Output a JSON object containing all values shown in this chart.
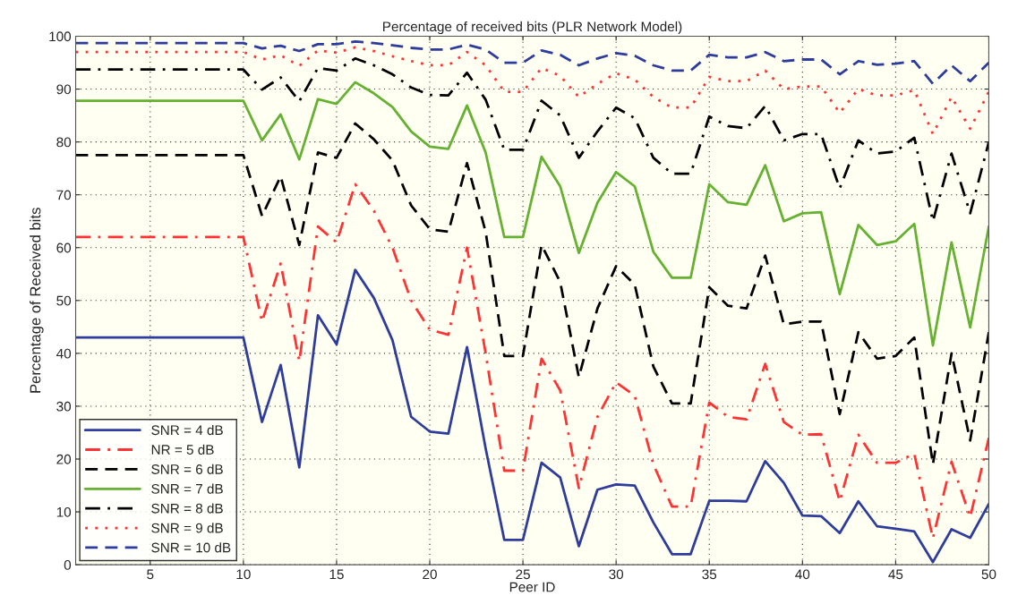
{
  "chart_data": {
    "type": "line",
    "title": "Percentage of received bits (PLR Network Model)",
    "xlabel": "Peer ID",
    "ylabel": "Percentage of Received bits",
    "x": [
      1,
      10,
      11,
      12,
      13,
      14,
      15,
      16,
      17,
      18,
      19,
      20,
      21,
      22,
      23,
      24,
      25,
      26,
      27,
      28,
      29,
      30,
      31,
      32,
      33,
      34,
      35,
      36,
      37,
      38,
      39,
      40,
      41,
      42,
      43,
      44,
      45,
      46,
      47,
      48,
      49,
      50
    ],
    "series": [
      {
        "name": "SNR = 4 dB",
        "color": "#2e3c9c",
        "line_style": "solid",
        "values": [
          43,
          43,
          27,
          37.8,
          18.4,
          47.2,
          41.7,
          55.8,
          50.5,
          42.5,
          28,
          25.2,
          24.8,
          41.2,
          22,
          4.7,
          4.7,
          19.3,
          16.5,
          3.5,
          14.2,
          15.2,
          15,
          8,
          2,
          2,
          12.1,
          12.1,
          12,
          19.6,
          15.5,
          9.3,
          9.2,
          6,
          12,
          7.3,
          6.8,
          6.3,
          0.5,
          6.7,
          5.1,
          11.5
        ]
      },
      {
        "name": "NR = 5 dB",
        "color": "#ff3333",
        "line_style": "dashdot",
        "values": [
          62,
          62,
          46,
          57,
          38.5,
          64,
          61,
          72,
          67,
          60,
          50,
          44.5,
          43.5,
          60,
          40,
          17.8,
          17.8,
          39,
          33,
          14.5,
          28,
          34.5,
          32,
          19,
          11,
          11,
          30.7,
          28,
          27.5,
          38,
          27,
          24.6,
          24.7,
          12,
          24.6,
          19.3,
          19.3,
          21,
          5,
          19.5,
          9,
          24
        ]
      },
      {
        "name": "SNR = 6 dB",
        "color": "#000000",
        "line_style": "dashed",
        "values": [
          77.5,
          77.5,
          66,
          73.5,
          60.5,
          78,
          77,
          83.5,
          80.5,
          76.5,
          68,
          63.5,
          63,
          76,
          63,
          39.5,
          39.5,
          60.5,
          53.5,
          35.5,
          48.5,
          56.5,
          53,
          37.5,
          30.5,
          30.5,
          52.5,
          49,
          48.5,
          58.5,
          45.5,
          46,
          46,
          28.5,
          44,
          39,
          39.5,
          43,
          19,
          40,
          23.5,
          44
        ]
      },
      {
        "name": "SNR = 7 dB",
        "color": "#66b032",
        "line_style": "solid",
        "values": [
          87.8,
          87.8,
          80.3,
          85.2,
          76.7,
          88.1,
          87.2,
          91.3,
          89.2,
          86.6,
          82,
          79.1,
          78.7,
          86.9,
          78,
          62,
          62,
          77.2,
          71.6,
          59,
          68.5,
          74.3,
          71.6,
          59.2,
          54.3,
          54.3,
          72,
          68.6,
          68.1,
          75.6,
          65,
          66.5,
          66.7,
          51.2,
          64.3,
          60.5,
          61.2,
          64.5,
          41.5,
          61,
          44.9,
          64
        ]
      },
      {
        "name": "SNR = 8 dB",
        "color": "#000000",
        "line_style": "dashdot",
        "values": [
          93.7,
          93.7,
          89.9,
          92.2,
          87.7,
          94,
          93.5,
          95.8,
          94.5,
          92.8,
          90.3,
          88.9,
          88.8,
          93.1,
          88,
          78.5,
          78.5,
          87.8,
          85,
          77,
          82,
          86.5,
          84.5,
          77,
          74,
          74,
          84.8,
          83,
          82.6,
          86.8,
          80.3,
          81.5,
          81.5,
          71.2,
          80.3,
          77.8,
          78.2,
          80.8,
          65,
          77.8,
          66.5,
          80
        ]
      },
      {
        "name": "SNR = 9 dB",
        "color": "#ff3333",
        "line_style": "dotted",
        "values": [
          97,
          97,
          95.6,
          96.4,
          94.4,
          97.3,
          96.9,
          97.9,
          97.2,
          96.2,
          95.3,
          94.5,
          94.5,
          97,
          94.5,
          89.5,
          89.5,
          94,
          92.5,
          88.5,
          91,
          93,
          91.8,
          88.5,
          86.5,
          86.5,
          92.3,
          91.5,
          91.5,
          93.5,
          90,
          90.5,
          90.5,
          85.5,
          90,
          88.8,
          88.8,
          89.8,
          81.5,
          88.5,
          82.5,
          89.5
        ]
      },
      {
        "name": "SNR = 10 dB",
        "color": "#2e3c9c",
        "line_style": "dashed",
        "values": [
          98.7,
          98.7,
          97.7,
          98.2,
          97.2,
          98.5,
          98.5,
          99,
          98.7,
          98.3,
          97.8,
          97.5,
          97.5,
          98.4,
          97.5,
          95,
          95,
          97.3,
          96.5,
          94.5,
          95.8,
          96.8,
          96.3,
          94.5,
          93.5,
          93.5,
          96.5,
          96,
          96,
          97,
          95.3,
          95.6,
          95.6,
          92.8,
          95.3,
          94.6,
          94.8,
          95.3,
          91,
          94.5,
          91.5,
          95
        ]
      }
    ],
    "xlim": [
      1,
      50
    ],
    "xticks": [
      5,
      10,
      15,
      20,
      25,
      30,
      35,
      40,
      45,
      50
    ],
    "ylim": [
      0,
      100
    ],
    "yticks": [
      0,
      10,
      20,
      30,
      40,
      50,
      60,
      70,
      80,
      90,
      100
    ],
    "grid": true,
    "legend": "bottom left"
  }
}
